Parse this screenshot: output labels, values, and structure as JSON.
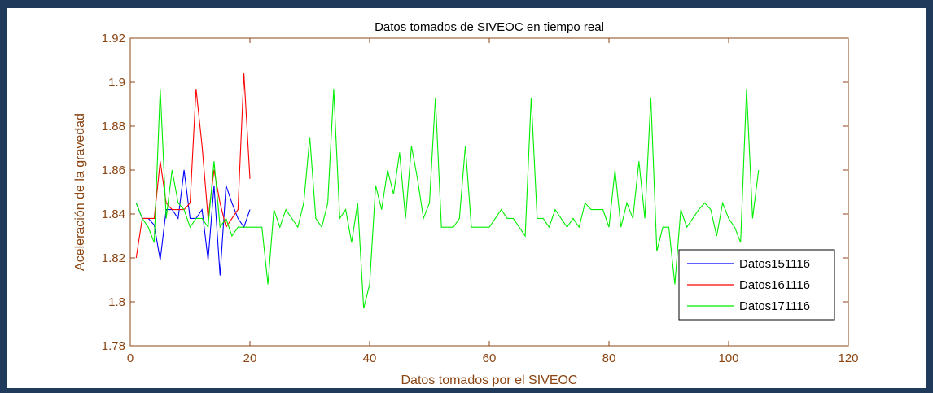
{
  "colors": {
    "axis": "#8b4513",
    "frame": "#1f3a5a",
    "text": "#000000"
  },
  "chart_data": {
    "type": "line",
    "title": "Datos tomados de SIVEOC en tiempo real",
    "xlabel": "Datos tomados por el SIVEOC",
    "ylabel": "Aceleración de la gravedad",
    "xlim": [
      0,
      120
    ],
    "ylim": [
      1.78,
      1.92
    ],
    "xticks": [
      0,
      20,
      40,
      60,
      80,
      100,
      120
    ],
    "yticks": [
      1.78,
      1.8,
      1.82,
      1.84,
      1.86,
      1.88,
      1.9,
      1.92
    ],
    "xtick_labels": [
      "0",
      "20",
      "40",
      "60",
      "80",
      "100",
      "120"
    ],
    "ytick_labels": [
      "1.78",
      "1.8",
      "1.82",
      "1.84",
      "1.86",
      "1.88",
      "1.9",
      "1.92"
    ],
    "grid": false,
    "legend_position": "bottom-right",
    "series": [
      {
        "name": "Datos151116",
        "color": "#0000ff",
        "x": [
          1,
          2,
          3,
          4,
          5,
          6,
          7,
          8,
          9,
          10,
          11,
          12,
          13,
          14,
          15,
          16,
          17,
          18,
          19,
          20
        ],
        "y": [
          1.845,
          1.838,
          1.838,
          1.835,
          1.819,
          1.842,
          1.842,
          1.838,
          1.86,
          1.838,
          1.838,
          1.842,
          1.819,
          1.853,
          1.812,
          1.853,
          1.845,
          1.838,
          1.834,
          1.842
        ]
      },
      {
        "name": "Datos161116",
        "color": "#ff0000",
        "x": [
          1,
          2,
          3,
          4,
          5,
          6,
          7,
          8,
          9,
          10,
          11,
          12,
          13,
          14,
          15,
          16,
          17,
          18,
          19,
          20
        ],
        "y": [
          1.82,
          1.838,
          1.838,
          1.838,
          1.864,
          1.845,
          1.842,
          1.842,
          1.842,
          1.845,
          1.897,
          1.871,
          1.838,
          1.86,
          1.845,
          1.834,
          1.838,
          1.842,
          1.904,
          1.856
        ]
      },
      {
        "name": "Datos171116",
        "color": "#00ee00",
        "x": [
          1,
          2,
          3,
          4,
          5,
          6,
          7,
          8,
          9,
          10,
          11,
          12,
          13,
          14,
          15,
          16,
          17,
          18,
          19,
          20,
          21,
          22,
          23,
          24,
          25,
          26,
          27,
          28,
          29,
          30,
          31,
          32,
          33,
          34,
          35,
          36,
          37,
          38,
          39,
          40,
          41,
          42,
          43,
          44,
          45,
          46,
          47,
          48,
          49,
          50,
          51,
          52,
          53,
          54,
          55,
          56,
          57,
          58,
          59,
          60,
          61,
          62,
          63,
          64,
          65,
          66,
          67,
          68,
          69,
          70,
          71,
          72,
          73,
          74,
          75,
          76,
          77,
          78,
          79,
          80,
          81,
          82,
          83,
          84,
          85,
          86,
          87,
          88,
          89,
          90,
          91,
          92,
          93,
          94,
          95,
          96,
          97,
          98,
          99,
          100,
          101,
          102,
          103,
          104,
          105
        ],
        "y": [
          1.845,
          1.838,
          1.834,
          1.827,
          1.897,
          1.838,
          1.86,
          1.845,
          1.842,
          1.834,
          1.838,
          1.838,
          1.834,
          1.864,
          1.834,
          1.838,
          1.83,
          1.834,
          1.834,
          1.834,
          1.834,
          1.834,
          1.808,
          1.842,
          1.834,
          1.842,
          1.838,
          1.834,
          1.845,
          1.875,
          1.838,
          1.834,
          1.845,
          1.897,
          1.838,
          1.842,
          1.827,
          1.845,
          1.797,
          1.808,
          1.853,
          1.842,
          1.86,
          1.849,
          1.868,
          1.838,
          1.871,
          1.856,
          1.838,
          1.845,
          1.893,
          1.834,
          1.834,
          1.834,
          1.838,
          1.871,
          1.834,
          1.834,
          1.834,
          1.834,
          1.838,
          1.842,
          1.838,
          1.838,
          1.834,
          1.83,
          1.893,
          1.838,
          1.838,
          1.834,
          1.842,
          1.838,
          1.834,
          1.838,
          1.834,
          1.845,
          1.842,
          1.842,
          1.842,
          1.834,
          1.86,
          1.834,
          1.845,
          1.838,
          1.864,
          1.838,
          1.893,
          1.823,
          1.834,
          1.834,
          1.808,
          1.842,
          1.834,
          1.838,
          1.842,
          1.845,
          1.842,
          1.83,
          1.845,
          1.838,
          1.834,
          1.827,
          1.897,
          1.838,
          1.86
        ]
      }
    ]
  }
}
